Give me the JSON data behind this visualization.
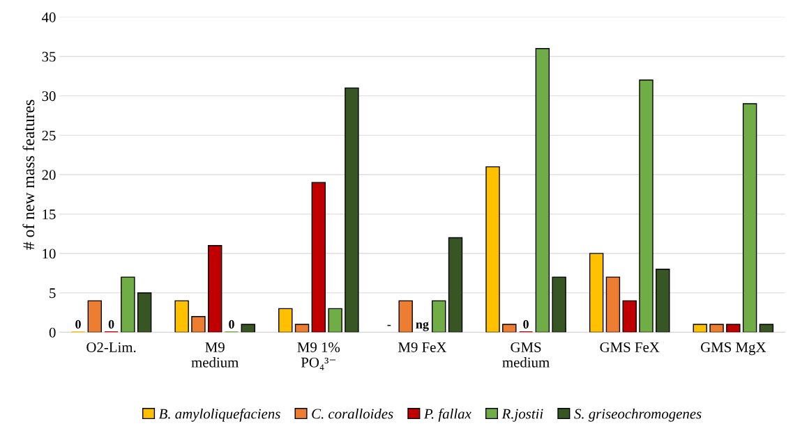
{
  "chart_data": {
    "type": "bar",
    "ylabel": "# of new mass features",
    "categories": [
      "O2-Lim.",
      "M9\nmedium",
      "M9 1%\nPO₄³⁻",
      "M9 FeX",
      "GMS\nmedium",
      "GMS FeX",
      "GMS MgX"
    ],
    "series": [
      {
        "name": "B. amyloliquefaciens",
        "color": "#ffc000",
        "values": [
          0,
          4,
          3,
          null,
          21,
          10,
          1
        ],
        "value_labels": [
          "0",
          null,
          null,
          "-",
          null,
          null,
          null
        ]
      },
      {
        "name": "C. coralloides",
        "color": "#ed7d31",
        "values": [
          4,
          2,
          1,
          4,
          1,
          7,
          1
        ]
      },
      {
        "name": "P. fallax",
        "color": "#c00000",
        "values": [
          0,
          11,
          19,
          null,
          0,
          4,
          1
        ],
        "value_labels": [
          "0",
          null,
          null,
          "ng",
          "0",
          null,
          null
        ]
      },
      {
        "name": "R.jostii",
        "color": "#70ad47",
        "values": [
          7,
          0,
          3,
          4,
          36,
          32,
          29
        ],
        "value_labels": [
          null,
          "0",
          null,
          null,
          null,
          null,
          null
        ]
      },
      {
        "name": "S. griseochromogenes",
        "color": "#375623",
        "values": [
          5,
          1,
          31,
          12,
          7,
          8,
          1
        ]
      }
    ],
    "ylim": [
      0,
      40
    ],
    "yticks": [
      0,
      5,
      10,
      15,
      20,
      25,
      30,
      35,
      40
    ],
    "grid": "y",
    "legend": "bottom"
  }
}
